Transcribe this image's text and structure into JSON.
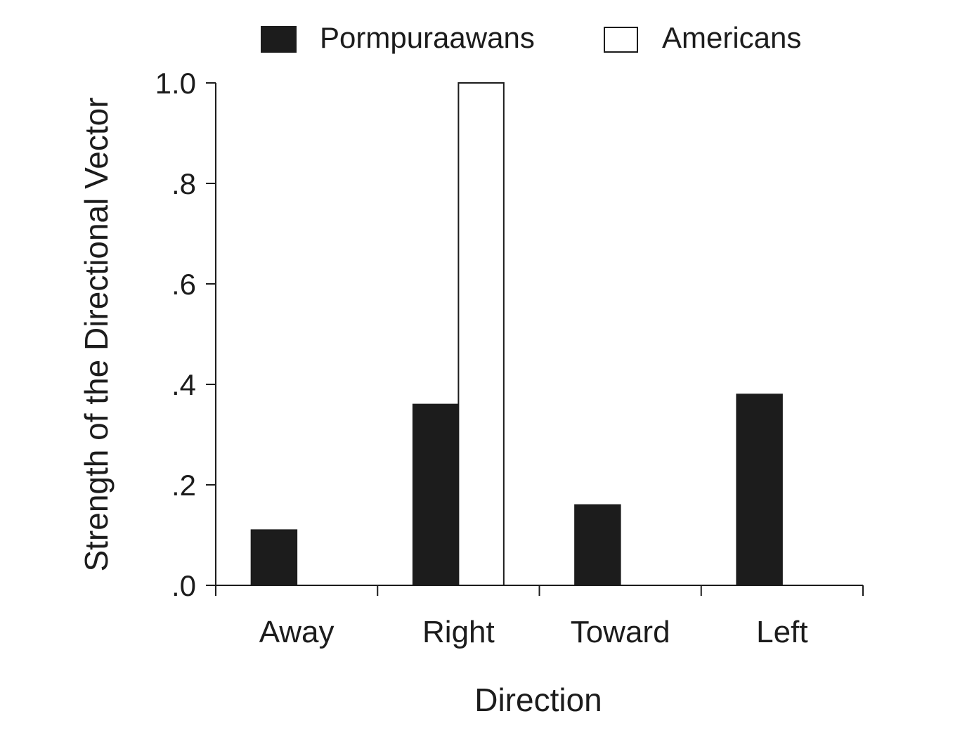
{
  "chart_data": {
    "type": "bar",
    "categories": [
      "Away",
      "Right",
      "Toward",
      "Left"
    ],
    "series": [
      {
        "name": "Pormpuraawans",
        "values": [
          0.11,
          0.36,
          0.16,
          0.38
        ],
        "color": "#1c1c1c"
      },
      {
        "name": "Americans",
        "values": [
          0.0,
          1.0,
          0.0,
          0.0
        ],
        "color": "#ffffff"
      }
    ],
    "xlabel": "Direction",
    "ylabel": "Strength of the Directional Vector",
    "ylim": [
      0.0,
      1.0
    ],
    "yticks": [
      0.0,
      0.2,
      0.4,
      0.6,
      0.8,
      1.0
    ],
    "ytick_labels": [
      ".0",
      ".2",
      ".4",
      ".6",
      ".8",
      "1.0"
    ],
    "legend_position": "top",
    "grid": false
  }
}
